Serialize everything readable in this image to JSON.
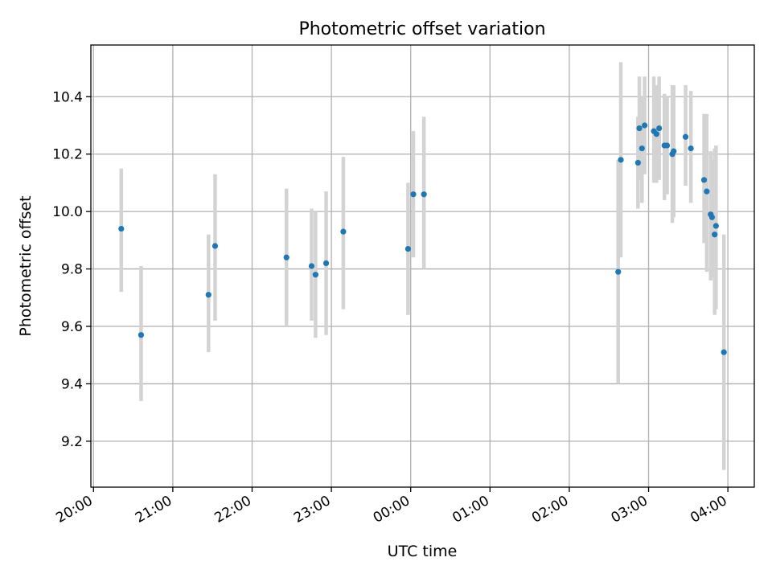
{
  "chart_data": {
    "type": "scatter",
    "title": "Photometric offset variation",
    "xlabel": "UTC time",
    "ylabel": "Photometric offset",
    "grid": true,
    "legend": "none",
    "x_axis_kind": "time",
    "x_range": [
      "19:58",
      "04:20"
    ],
    "ylim": [
      9.04,
      10.58
    ],
    "x_ticks": [
      "20:00",
      "21:00",
      "22:00",
      "23:00",
      "00:00",
      "01:00",
      "02:00",
      "03:00",
      "04:00"
    ],
    "y_ticks": [
      9.2,
      9.4,
      9.6,
      9.8,
      10.0,
      10.2,
      10.4
    ],
    "colors": {
      "point": "#1f77b4",
      "errorbar": "#d3d3d3",
      "grid": "#b0b0b0"
    },
    "series": [
      {
        "points": [
          {
            "x": "20:21",
            "y": 9.94,
            "lo": 9.72,
            "hi": 10.15
          },
          {
            "x": "20:36",
            "y": 9.57,
            "lo": 9.34,
            "hi": 9.81
          },
          {
            "x": "21:27",
            "y": 9.71,
            "lo": 9.51,
            "hi": 9.92
          },
          {
            "x": "21:32",
            "y": 9.88,
            "lo": 9.62,
            "hi": 10.13
          },
          {
            "x": "22:26",
            "y": 9.84,
            "lo": 9.6,
            "hi": 10.08
          },
          {
            "x": "22:45",
            "y": 9.81,
            "lo": 9.62,
            "hi": 10.01
          },
          {
            "x": "22:48",
            "y": 9.78,
            "lo": 9.56,
            "hi": 10.0
          },
          {
            "x": "22:56",
            "y": 9.82,
            "lo": 9.57,
            "hi": 10.07
          },
          {
            "x": "23:09",
            "y": 9.93,
            "lo": 9.66,
            "hi": 10.19
          },
          {
            "x": "23:58",
            "y": 9.87,
            "lo": 9.64,
            "hi": 10.1
          },
          {
            "x": "00:02",
            "y": 10.06,
            "lo": 9.84,
            "hi": 10.28
          },
          {
            "x": "00:10",
            "y": 10.06,
            "lo": 9.8,
            "hi": 10.33
          },
          {
            "x": "02:37",
            "y": 9.79,
            "lo": 9.4,
            "hi": 10.18
          },
          {
            "x": "02:39",
            "y": 10.18,
            "lo": 9.84,
            "hi": 10.52
          },
          {
            "x": "02:52",
            "y": 10.17,
            "lo": 10.01,
            "hi": 10.33
          },
          {
            "x": "02:53",
            "y": 10.29,
            "lo": 10.11,
            "hi": 10.47
          },
          {
            "x": "02:55",
            "y": 10.22,
            "lo": 10.03,
            "hi": 10.4
          },
          {
            "x": "02:57",
            "y": 10.3,
            "lo": 10.13,
            "hi": 10.47
          },
          {
            "x": "03:04",
            "y": 10.28,
            "lo": 10.1,
            "hi": 10.47
          },
          {
            "x": "03:06",
            "y": 10.27,
            "lo": 10.1,
            "hi": 10.44
          },
          {
            "x": "03:08",
            "y": 10.29,
            "lo": 10.11,
            "hi": 10.47
          },
          {
            "x": "03:12",
            "y": 10.23,
            "lo": 10.04,
            "hi": 10.41
          },
          {
            "x": "03:14",
            "y": 10.23,
            "lo": 10.06,
            "hi": 10.4
          },
          {
            "x": "03:18",
            "y": 10.2,
            "lo": 9.96,
            "hi": 10.44
          },
          {
            "x": "03:19",
            "y": 10.21,
            "lo": 9.98,
            "hi": 10.44
          },
          {
            "x": "03:28",
            "y": 10.26,
            "lo": 10.09,
            "hi": 10.44
          },
          {
            "x": "03:32",
            "y": 10.22,
            "lo": 10.03,
            "hi": 10.42
          },
          {
            "x": "03:42",
            "y": 10.11,
            "lo": 9.89,
            "hi": 10.34
          },
          {
            "x": "03:44",
            "y": 10.07,
            "lo": 9.79,
            "hi": 10.34
          },
          {
            "x": "03:47",
            "y": 9.99,
            "lo": 9.76,
            "hi": 10.21
          },
          {
            "x": "03:48",
            "y": 9.98,
            "lo": 9.77,
            "hi": 10.18
          },
          {
            "x": "03:50",
            "y": 9.92,
            "lo": 9.64,
            "hi": 10.22
          },
          {
            "x": "03:51",
            "y": 9.95,
            "lo": 9.66,
            "hi": 10.23
          },
          {
            "x": "03:57",
            "y": 9.51,
            "lo": 9.1,
            "hi": 9.92
          }
        ]
      }
    ]
  }
}
